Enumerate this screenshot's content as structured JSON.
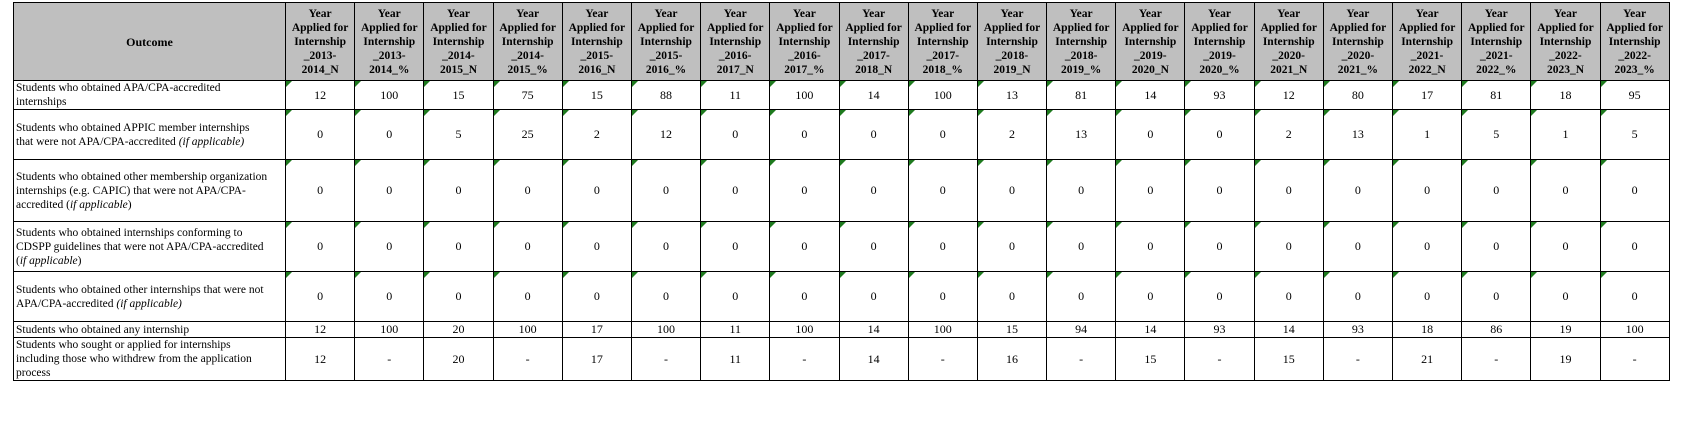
{
  "table": {
    "outcome_header": "Outcome",
    "col_headers": [
      [
        "Year",
        "Applied for",
        "Internship",
        "_2013-",
        "2014_N"
      ],
      [
        "Year",
        "Applied for",
        "Internship",
        "_2013-",
        "2014_%"
      ],
      [
        "Year",
        "Applied for",
        "Internship",
        "_2014-",
        "2015_N"
      ],
      [
        "Year",
        "Applied for",
        "Internship",
        "_2014-",
        "2015_%"
      ],
      [
        "Year",
        "Applied for",
        "Internship",
        "_2015-",
        "2016_N"
      ],
      [
        "Year",
        "Applied for",
        "Internship",
        "_2015-",
        "2016_%"
      ],
      [
        "Year",
        "Applied for",
        "Internship",
        "_2016-",
        "2017_N"
      ],
      [
        "Year",
        "Applied for",
        "Internship",
        "_2016-",
        "2017_%"
      ],
      [
        "Year",
        "Applied for",
        "Internship",
        "_2017-",
        "2018_N"
      ],
      [
        "Year",
        "Applied for",
        "Internship",
        "_2017-",
        "2018_%"
      ],
      [
        "Year",
        "Applied for",
        "Internship",
        "_2018-",
        "2019_N"
      ],
      [
        "Year",
        "Applied for",
        "Internship",
        "_2018-",
        "2019_%"
      ],
      [
        "Year",
        "Applied for",
        "Internship",
        "_2019-",
        "2020_N"
      ],
      [
        "Year",
        "Applied for",
        "Internship",
        "_2019-",
        "2020_%"
      ],
      [
        "Year",
        "Applied for",
        "Internship",
        "_2020-",
        "2021_N"
      ],
      [
        "Year",
        "Applied for",
        "Internship",
        "_2020-",
        "2021_%"
      ],
      [
        "Year",
        "Applied for",
        "Internship",
        "_2021-",
        "2022_N"
      ],
      [
        "Year",
        "Applied for",
        "Internship",
        "_2021-",
        "2022_%"
      ],
      [
        "Year",
        "Applied for",
        "Internship",
        "_2022-",
        "2023_N"
      ],
      [
        "Year",
        "Applied for",
        "Internship",
        "_2022-",
        "2023_%"
      ]
    ],
    "rows": [
      {
        "label_lines": [
          "Students who obtained APA/CPA-accredited",
          "internships"
        ],
        "paren": "",
        "values": [
          "12",
          "100",
          "15",
          "75",
          "15",
          "88",
          "11",
          "100",
          "14",
          "100",
          "13",
          "81",
          "14",
          "93",
          "12",
          "80",
          "17",
          "81",
          "18",
          "95"
        ]
      },
      {
        "label_lines": [
          "Students who obtained APPIC member internships",
          "that were not APA/CPA-accredited "
        ],
        "paren": "(if applicable)",
        "values": [
          "0",
          "0",
          "5",
          "25",
          "2",
          "12",
          "0",
          "0",
          "0",
          "0",
          "2",
          "13",
          "0",
          "0",
          "2",
          "13",
          "1",
          "5",
          "1",
          "5"
        ]
      },
      {
        "label_lines": [
          "Students who obtained other membership organization",
          "internships (e.g. CAPIC) that were not APA/CPA-",
          "accredited ("
        ],
        "paren": "if applicable",
        "paren_suffix": ")",
        "values": [
          "0",
          "0",
          "0",
          "0",
          "0",
          "0",
          "0",
          "0",
          "0",
          "0",
          "0",
          "0",
          "0",
          "0",
          "0",
          "0",
          "0",
          "0",
          "0",
          "0"
        ]
      },
      {
        "label_lines": [
          "Students who obtained  internships conforming to",
          "CDSPP guidelines that were not APA/CPA-accredited",
          "("
        ],
        "paren": "if applicable",
        "paren_suffix": ")",
        "values": [
          "0",
          "0",
          "0",
          "0",
          "0",
          "0",
          "0",
          "0",
          "0",
          "0",
          "0",
          "0",
          "0",
          "0",
          "0",
          "0",
          "0",
          "0",
          "0",
          "0"
        ]
      },
      {
        "label_lines": [
          "Students who obtained other internships that were not",
          "APA/CPA-accredited "
        ],
        "paren": "(if applicable)",
        "values": [
          "0",
          "0",
          "0",
          "0",
          "0",
          "0",
          "0",
          "0",
          "0",
          "0",
          "0",
          "0",
          "0",
          "0",
          "0",
          "0",
          "0",
          "0",
          "0",
          "0"
        ]
      },
      {
        "label_lines": [
          "Students who obtained any internship"
        ],
        "paren": "",
        "values": [
          "12",
          "100",
          "20",
          "100",
          "17",
          "100",
          "11",
          "100",
          "14",
          "100",
          "15",
          "94",
          "14",
          "93",
          "14",
          "93",
          "18",
          "86",
          "19",
          "100"
        ]
      },
      {
        "label_lines": [
          "Students who sought or applied for internships",
          "including those who withdrew from the application",
          "process"
        ],
        "paren": "",
        "values": [
          "12",
          "-",
          "20",
          "-",
          "17",
          "-",
          "11",
          "-",
          "14",
          "-",
          "16",
          "-",
          "15",
          "-",
          "15",
          "-",
          "21",
          "-",
          "19",
          "-"
        ]
      }
    ]
  }
}
